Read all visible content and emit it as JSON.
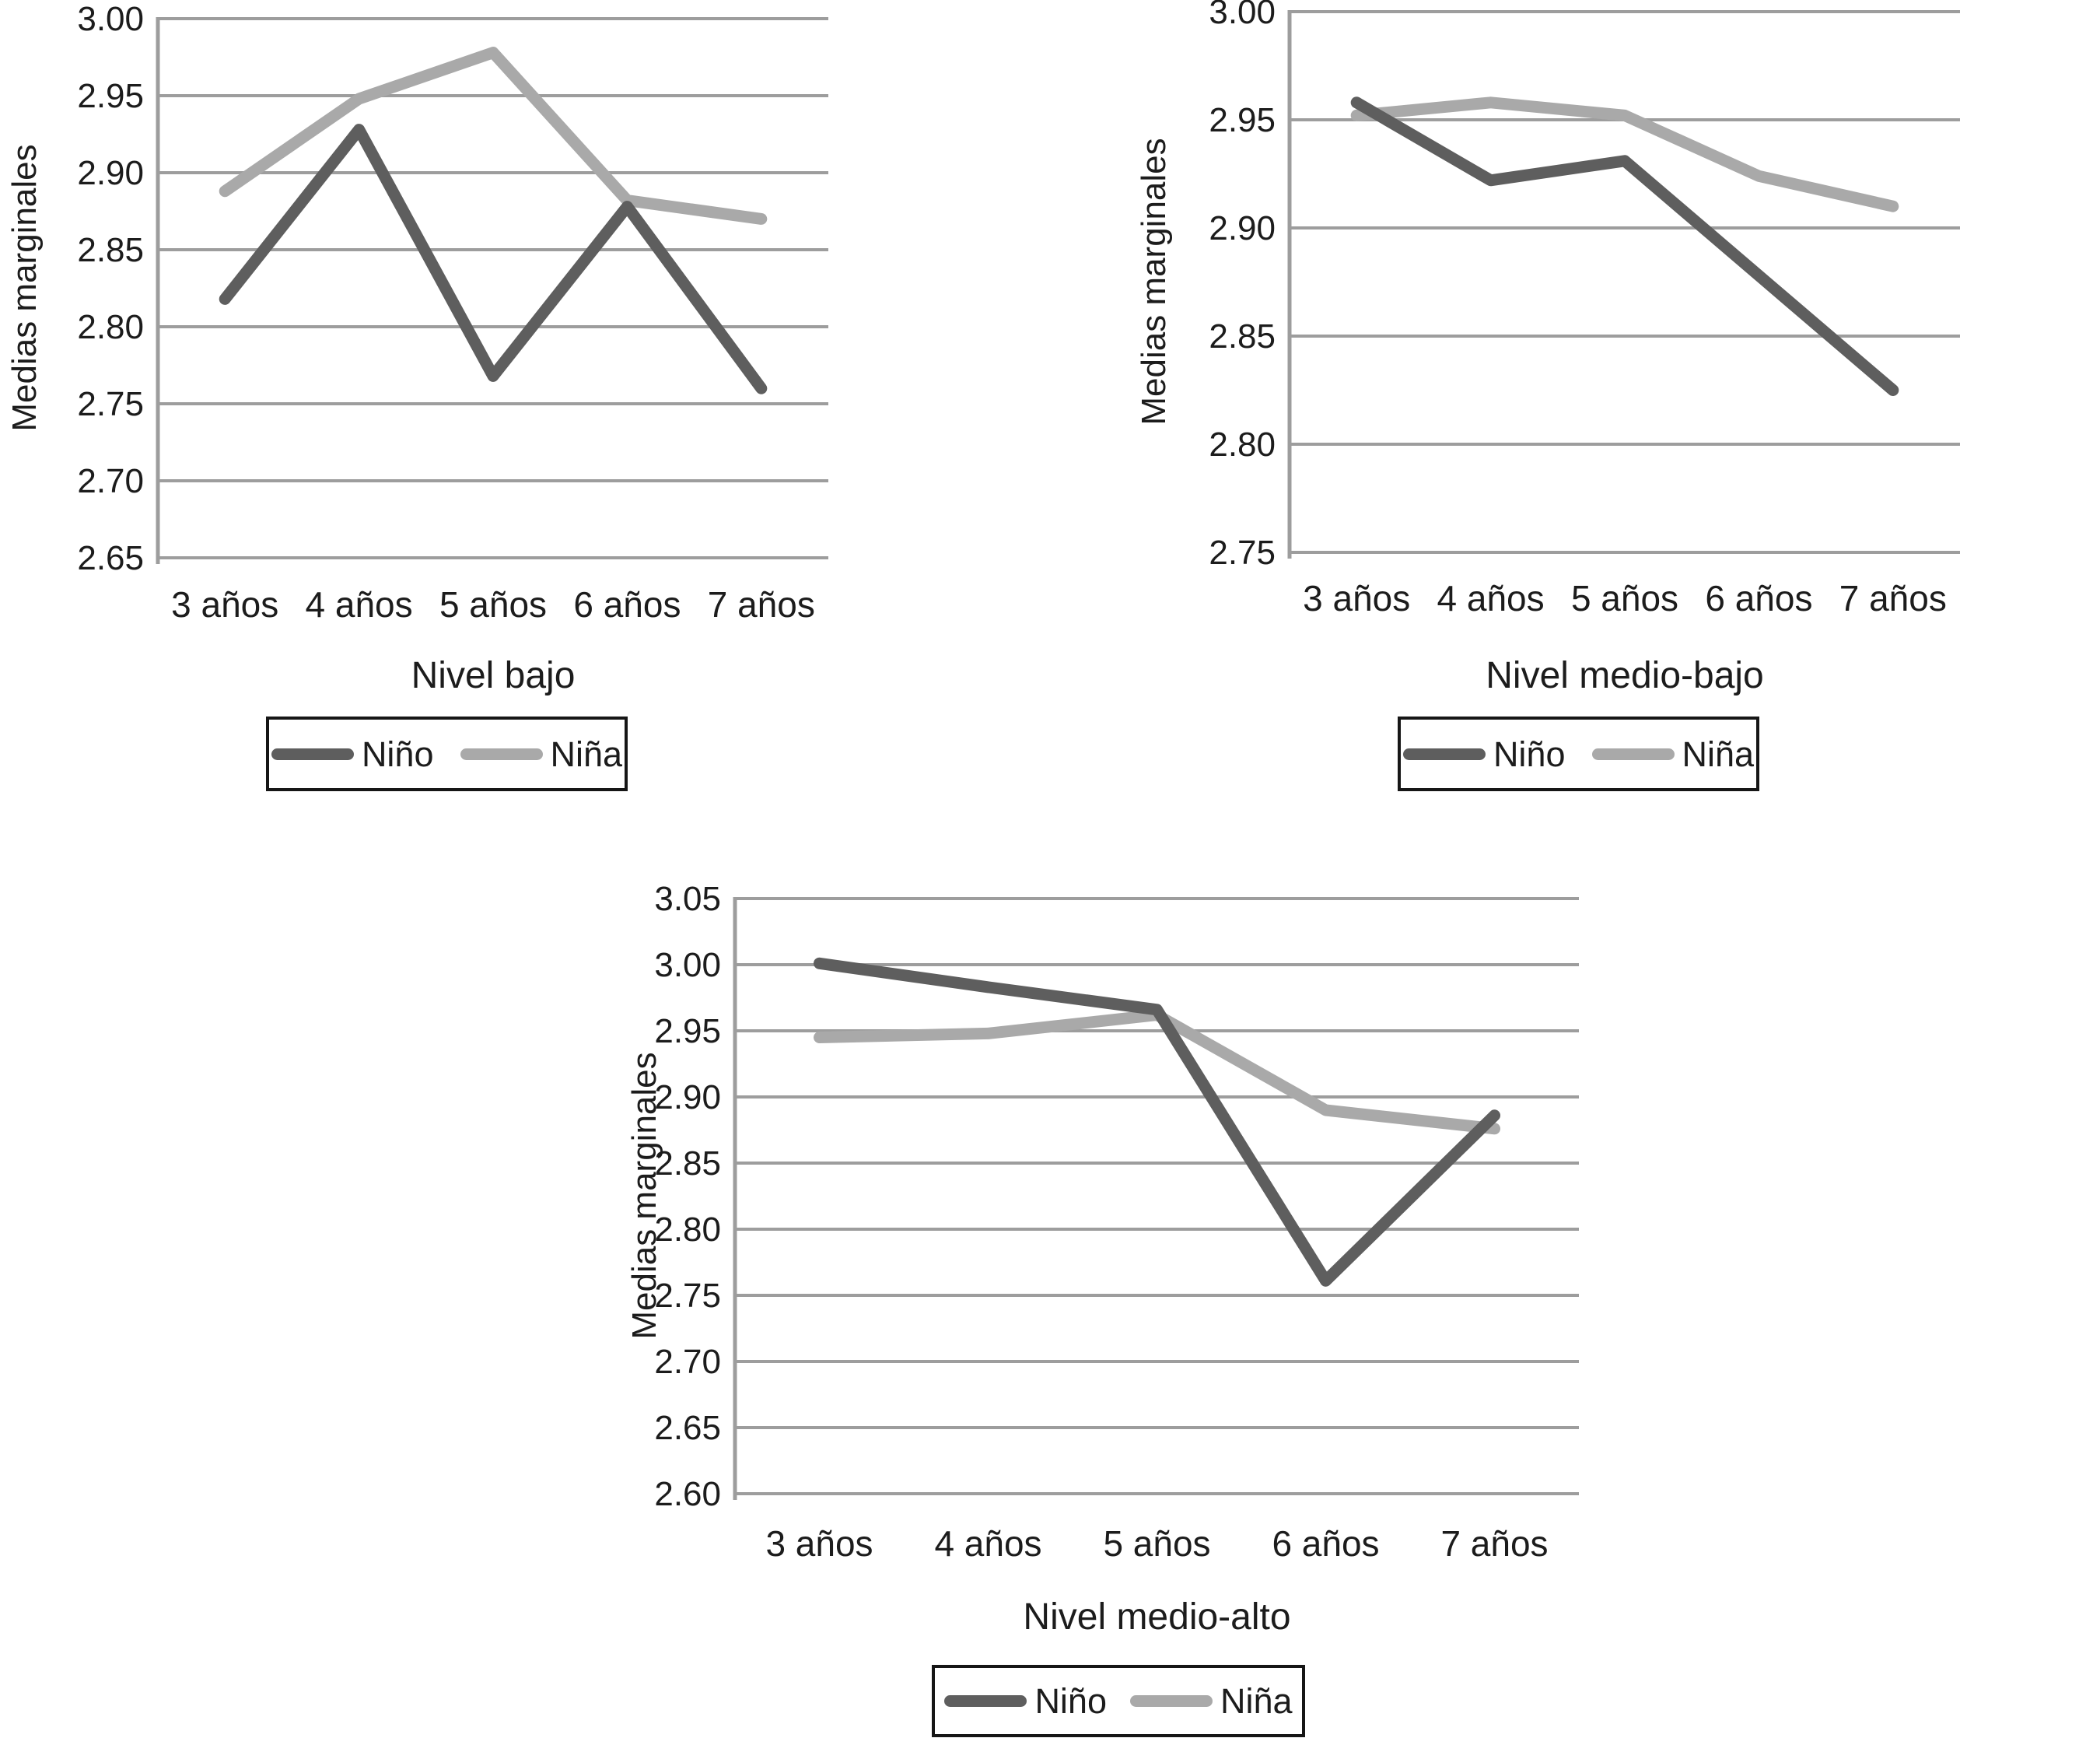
{
  "figure": {
    "background": "#ffffff",
    "text_color": "#1c1c1c",
    "gridline_color": "#9d9d9d",
    "legend_border_color": "#161616"
  },
  "chart_data": [
    {
      "type": "line",
      "title": "Nivel bajo",
      "ylabel": "Medias marginales",
      "xlabel": "",
      "categories": [
        "3 años",
        "4 años",
        "5 años",
        "6 años",
        "7 años"
      ],
      "ylim": [
        2.65,
        3.0
      ],
      "ytick_step": 0.05,
      "grid": true,
      "legend_position": "bottom",
      "legend": [
        "Niño",
        "Niña"
      ],
      "series": [
        {
          "name": "Niño",
          "color": "#5e5e5e",
          "values": [
            2.818,
            2.928,
            2.768,
            2.878,
            2.76
          ]
        },
        {
          "name": "Niña",
          "color": "#a9a9a9",
          "values": [
            2.888,
            2.948,
            2.978,
            2.882,
            2.87
          ]
        }
      ]
    },
    {
      "type": "line",
      "title": "Nivel medio-bajo",
      "ylabel": "Medias marginales",
      "xlabel": "",
      "categories": [
        "3 años",
        "4 años",
        "5 años",
        "6 años",
        "7 años"
      ],
      "ylim": [
        2.75,
        3.0
      ],
      "ytick_step": 0.05,
      "grid": true,
      "legend_position": "bottom",
      "legend": [
        "Niño",
        "Niña"
      ],
      "series": [
        {
          "name": "Niño",
          "color": "#5e5e5e",
          "values": [
            2.958,
            2.922,
            2.931,
            2.878,
            2.825
          ]
        },
        {
          "name": "Niña",
          "color": "#a9a9a9",
          "values": [
            2.952,
            2.958,
            2.952,
            2.924,
            2.91
          ]
        }
      ]
    },
    {
      "type": "line",
      "title": "Nivel medio-alto",
      "ylabel": "Medias marginales",
      "xlabel": "",
      "categories": [
        "3 años",
        "4 años",
        "5 años",
        "6 años",
        "7 años"
      ],
      "ylim": [
        2.6,
        3.05
      ],
      "ytick_step": 0.05,
      "grid": true,
      "legend_position": "bottom",
      "legend": [
        "Niño",
        "Niña"
      ],
      "series": [
        {
          "name": "Niño",
          "color": "#5e5e5e",
          "values": [
            3.001,
            2.983,
            2.966,
            2.761,
            2.886
          ]
        },
        {
          "name": "Niña",
          "color": "#a9a9a9",
          "values": [
            2.945,
            2.948,
            2.962,
            2.89,
            2.876
          ]
        }
      ]
    }
  ]
}
